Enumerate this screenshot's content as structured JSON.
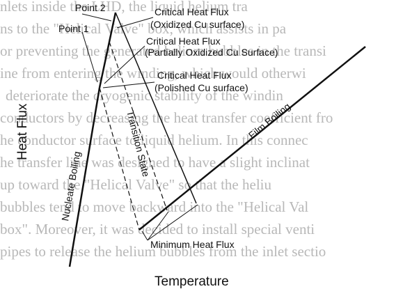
{
  "background_text": {
    "lines": [
      "nlets inside the LHD, the liquid helium tra",
      "ns to the \"Helical Valve\" box, which assists in pa",
      "or preventing the generated helium bubbles in the transi",
      "ine from entering the winding, which would otherwi",
      "deteriorate the cryogenic stability of the windin",
      "conductors by decreasing the heat transfer coefficient fro",
      "he conductor surface to liquid helium. In this connec",
      "he transfer line was designed to have a slight inclinat",
      "up toward the \"Helical Valve\" so that the heliu",
      "bubbles tend to move backward into the \"Helical Val",
      "box\". Moreover, it was decided to install special venti",
      "pipes to release the helium bubbles from the inlet sectio"
    ]
  },
  "axes": {
    "x": "Temperature",
    "y": "Heat Flux"
  },
  "labels": {
    "point_2": "Point 2",
    "point_1": "Point 1",
    "chf_oxidized": [
      "Critical Heat Flux",
      "(Oxidized Cu surface)"
    ],
    "chf_partial": [
      "Critical Heat Flux",
      "(Partially Oxidized Cu Surface)"
    ],
    "chf_polished": [
      "Critical Heat Flux",
      "(Polished Cu surface)"
    ],
    "nucleate": "Nucleate Boiling",
    "transition": "Transition State",
    "film": "Film Boiling",
    "minimum": "Minimum Heat Flux"
  }
}
